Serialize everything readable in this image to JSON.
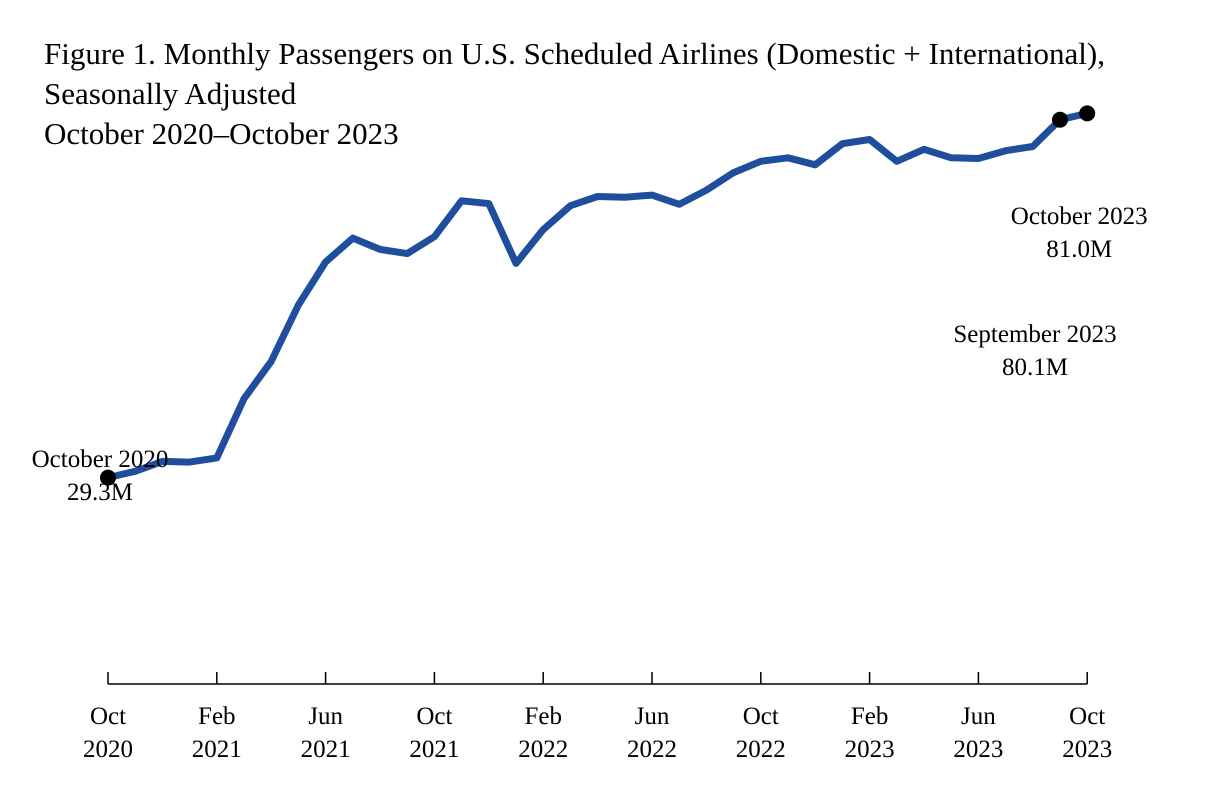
{
  "title": {
    "line1": "Figure 1. Monthly Passengers on U.S. Scheduled Airlines (Domestic + International),",
    "line2": "Seasonally Adjusted",
    "line3": "October 2020–October 2023"
  },
  "chart_data": {
    "type": "line",
    "title": "Figure 1. Monthly Passengers on U.S. Scheduled Airlines (Domestic + International), Seasonally Adjusted, October 2020–October 2023",
    "xlabel": "",
    "ylabel": "",
    "ylim": [
      0,
      90
    ],
    "grid": false,
    "series_color": "#1f4e9c",
    "x": [
      "2020-10",
      "2020-11",
      "2020-12",
      "2021-01",
      "2021-02",
      "2021-03",
      "2021-04",
      "2021-05",
      "2021-06",
      "2021-07",
      "2021-08",
      "2021-09",
      "2021-10",
      "2021-11",
      "2021-12",
      "2022-01",
      "2022-02",
      "2022-03",
      "2022-04",
      "2022-05",
      "2022-06",
      "2022-07",
      "2022-08",
      "2022-09",
      "2022-10",
      "2022-11",
      "2022-12",
      "2023-01",
      "2023-02",
      "2023-03",
      "2023-04",
      "2023-05",
      "2023-06",
      "2023-07",
      "2023-08",
      "2023-09",
      "2023-10"
    ],
    "values": [
      29.3,
      30.2,
      31.6,
      31.5,
      32.1,
      40.5,
      45.8,
      53.8,
      59.9,
      63.3,
      61.7,
      61.1,
      63.5,
      68.6,
      68.2,
      59.7,
      64.5,
      67.9,
      69.2,
      69.1,
      69.4,
      68.1,
      70.1,
      72.6,
      74.2,
      74.7,
      73.7,
      76.7,
      77.3,
      74.2,
      75.9,
      74.7,
      74.6,
      75.7,
      76.3,
      80.1,
      81.0
    ],
    "x_ticks": [
      {
        "month": "Oct",
        "year": "2020"
      },
      {
        "month": "Feb",
        "year": "2021"
      },
      {
        "month": "Jun",
        "year": "2021"
      },
      {
        "month": "Oct",
        "year": "2021"
      },
      {
        "month": "Feb",
        "year": "2022"
      },
      {
        "month": "Jun",
        "year": "2022"
      },
      {
        "month": "Oct",
        "year": "2022"
      },
      {
        "month": "Feb",
        "year": "2023"
      },
      {
        "month": "Jun",
        "year": "2023"
      },
      {
        "month": "Oct",
        "year": "2023"
      }
    ],
    "annotations": [
      {
        "index": 0,
        "label": "October 2020",
        "value_label": "29.3M"
      },
      {
        "index": 35,
        "label": "September 2023",
        "value_label": "80.1M"
      },
      {
        "index": 36,
        "label": "October 2023",
        "value_label": "81.0M"
      }
    ]
  }
}
